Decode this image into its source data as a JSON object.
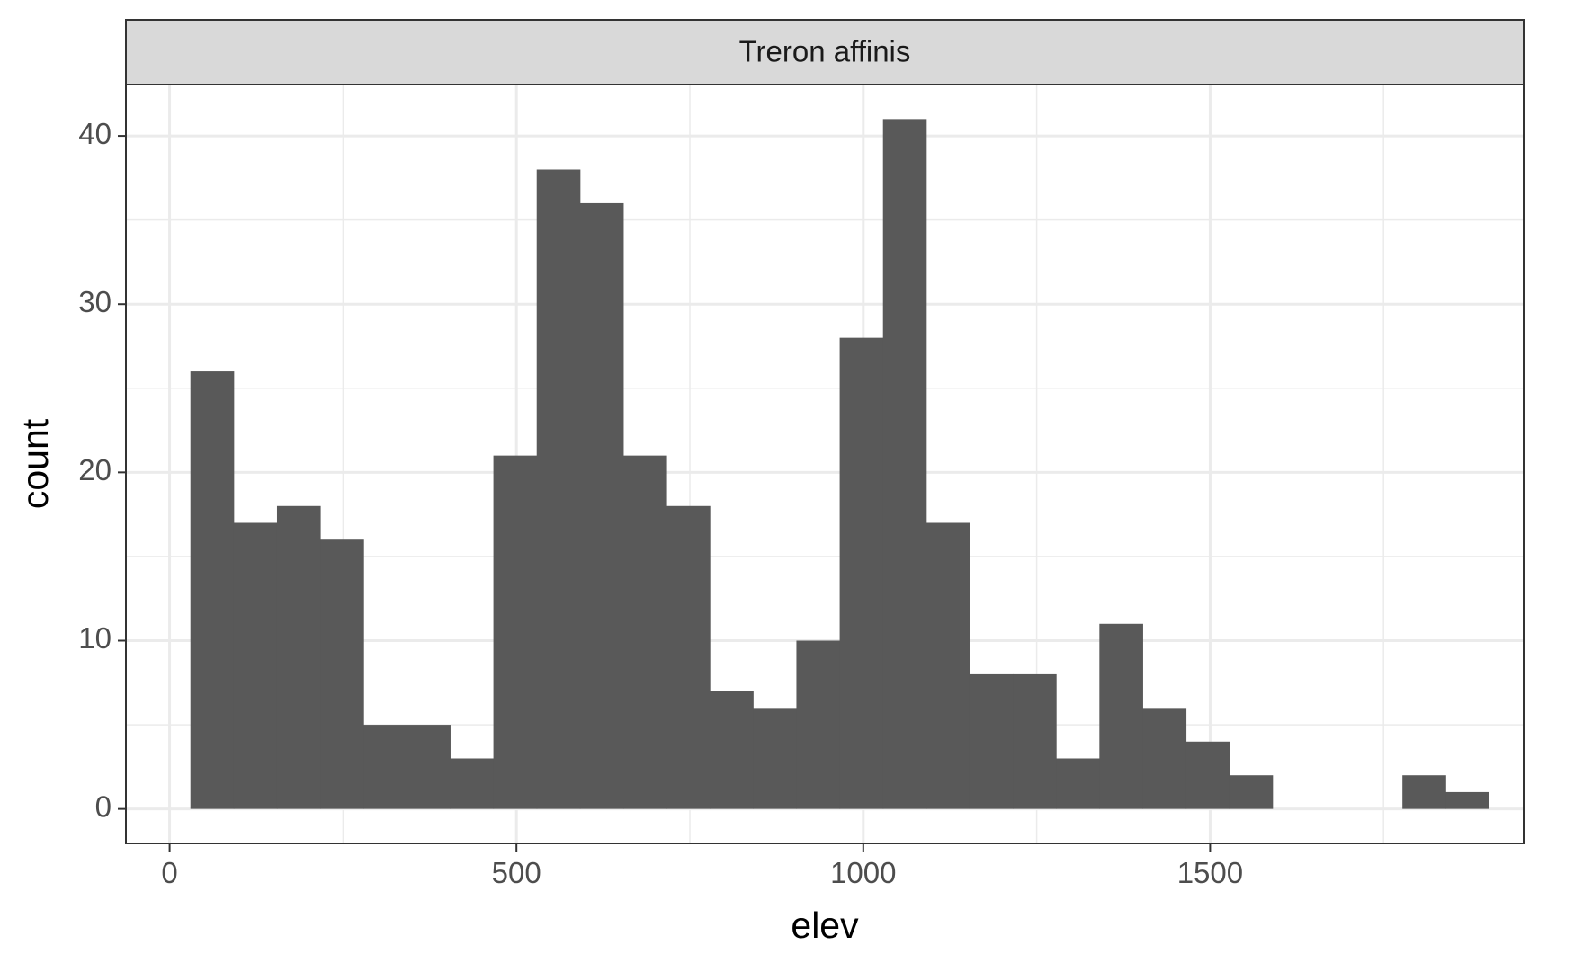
{
  "chart_data": {
    "type": "bar",
    "facet_label": "Treron affinis",
    "xlabel": "elev",
    "ylabel": "count",
    "title": "",
    "x_ticks": [
      0,
      500,
      1000,
      1500
    ],
    "y_ticks": [
      0,
      10,
      20,
      30,
      40
    ],
    "xlim": [
      -63,
      1952
    ],
    "ylim": [
      -2.05,
      43.05
    ],
    "grid": true,
    "bin_width": 62.4,
    "bins": [
      {
        "x0": 30,
        "x1": 92.4,
        "count": 26
      },
      {
        "x0": 92.4,
        "x1": 154.8,
        "count": 17
      },
      {
        "x0": 154.8,
        "x1": 217.2,
        "count": 18
      },
      {
        "x0": 217.2,
        "x1": 279.6,
        "count": 16
      },
      {
        "x0": 279.6,
        "x1": 342,
        "count": 5
      },
      {
        "x0": 342,
        "x1": 404.4,
        "count": 5
      },
      {
        "x0": 404.4,
        "x1": 466.8,
        "count": 3
      },
      {
        "x0": 466.8,
        "x1": 529.2,
        "count": 21
      },
      {
        "x0": 529.2,
        "x1": 591.6,
        "count": 38
      },
      {
        "x0": 591.6,
        "x1": 654,
        "count": 36
      },
      {
        "x0": 654,
        "x1": 716.4,
        "count": 21
      },
      {
        "x0": 716.4,
        "x1": 778.8,
        "count": 18
      },
      {
        "x0": 778.8,
        "x1": 841.2,
        "count": 7
      },
      {
        "x0": 841.2,
        "x1": 903.6,
        "count": 6
      },
      {
        "x0": 903.6,
        "x1": 966,
        "count": 10
      },
      {
        "x0": 966,
        "x1": 1028.4,
        "count": 28
      },
      {
        "x0": 1028.4,
        "x1": 1090.8,
        "count": 41
      },
      {
        "x0": 1090.8,
        "x1": 1153.2,
        "count": 17
      },
      {
        "x0": 1153.2,
        "x1": 1215.6,
        "count": 8
      },
      {
        "x0": 1215.6,
        "x1": 1278,
        "count": 8
      },
      {
        "x0": 1278,
        "x1": 1340.4,
        "count": 3
      },
      {
        "x0": 1340.4,
        "x1": 1402.8,
        "count": 11
      },
      {
        "x0": 1402.8,
        "x1": 1465.2,
        "count": 6
      },
      {
        "x0": 1465.2,
        "x1": 1527.6,
        "count": 4
      },
      {
        "x0": 1527.6,
        "x1": 1590,
        "count": 2
      },
      {
        "x0": 1590,
        "x1": 1652.4,
        "count": 0
      },
      {
        "x0": 1652.4,
        "x1": 1714.8,
        "count": 0
      },
      {
        "x0": 1714.8,
        "x1": 1777.2,
        "count": 0
      },
      {
        "x0": 1777.2,
        "x1": 1839.6,
        "count": 2
      },
      {
        "x0": 1839.6,
        "x1": 1902,
        "count": 1
      }
    ],
    "colors": {
      "bar_fill": "#595959",
      "strip_fill": "#d9d9d9",
      "grid": "#ebebeb",
      "border": "#333333"
    }
  }
}
